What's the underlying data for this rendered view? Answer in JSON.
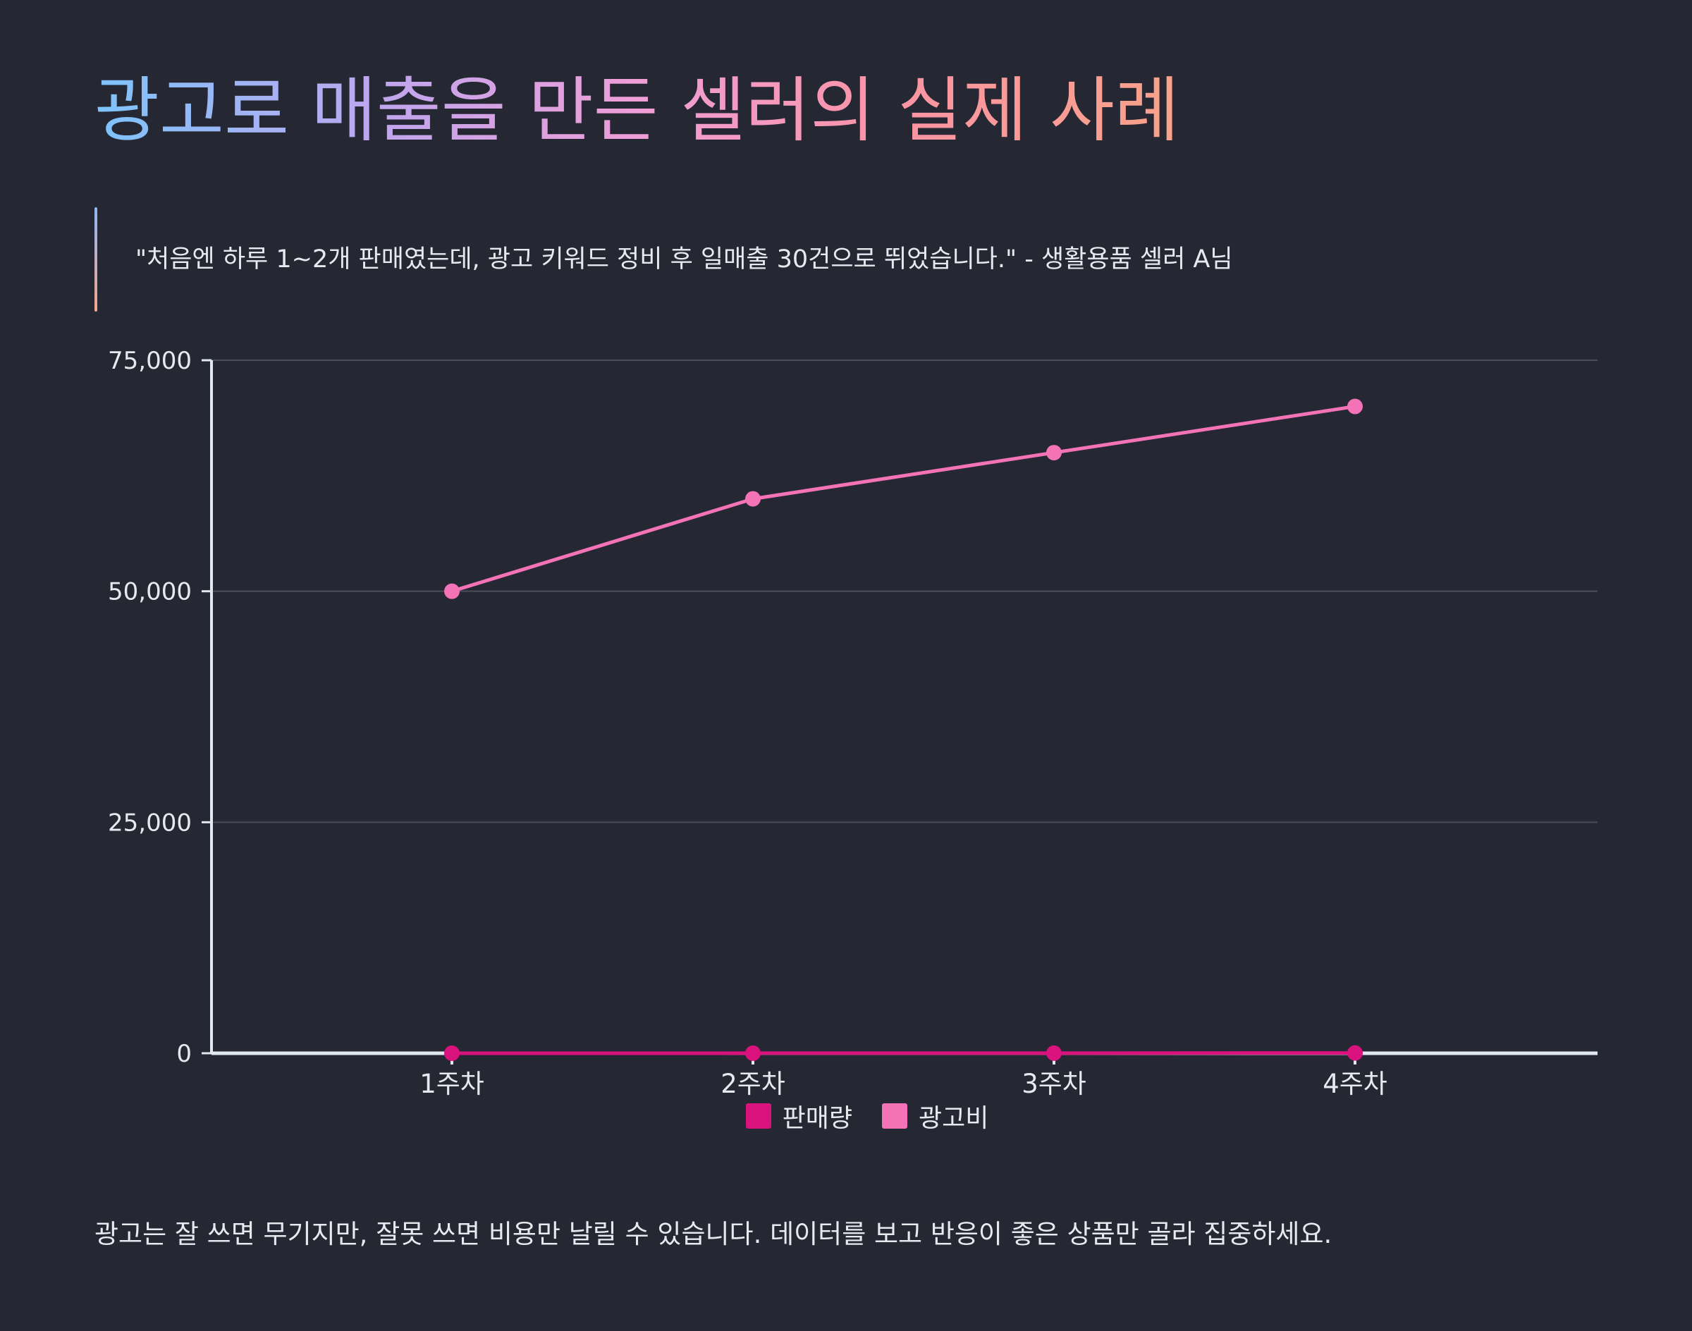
{
  "title": "광고로 매출을 만든 셀러의 실제 사례",
  "quote": "\"처음엔 하루 1~2개 판매였는데, 광고 키워드 정비 후 일매출 30건으로 뛰었습니다.\" - 생활용품 셀러 A님",
  "footer": "광고는 잘 쓰면 무기지만, 잘못 쓰면 비용만 날릴 수 있습니다. 데이터를 보고 반응이 좋은 상품만 골라 집중하세요.",
  "colors": {
    "background": "#252733",
    "series_sales": "#d9127d",
    "series_ad": "#f472b6",
    "axis": "#e2e8f0",
    "grid": "#4b4d57"
  },
  "chart_data": {
    "type": "line",
    "categories": [
      "1주차",
      "2주차",
      "3주차",
      "4주차"
    ],
    "series": [
      {
        "name": "판매량",
        "values": [
          2,
          5,
          12,
          30
        ],
        "color": "#d9127d"
      },
      {
        "name": "광고비",
        "values": [
          50000,
          60000,
          65000,
          70000
        ],
        "color": "#f472b6"
      }
    ],
    "ylim": [
      0,
      75000
    ],
    "yticks": [
      0,
      25000,
      50000,
      75000
    ],
    "ytick_labels": [
      "0",
      "25,000",
      "50,000",
      "75,000"
    ],
    "grid": true,
    "legend": [
      "판매량",
      "광고비"
    ],
    "legend_position": "bottom"
  }
}
